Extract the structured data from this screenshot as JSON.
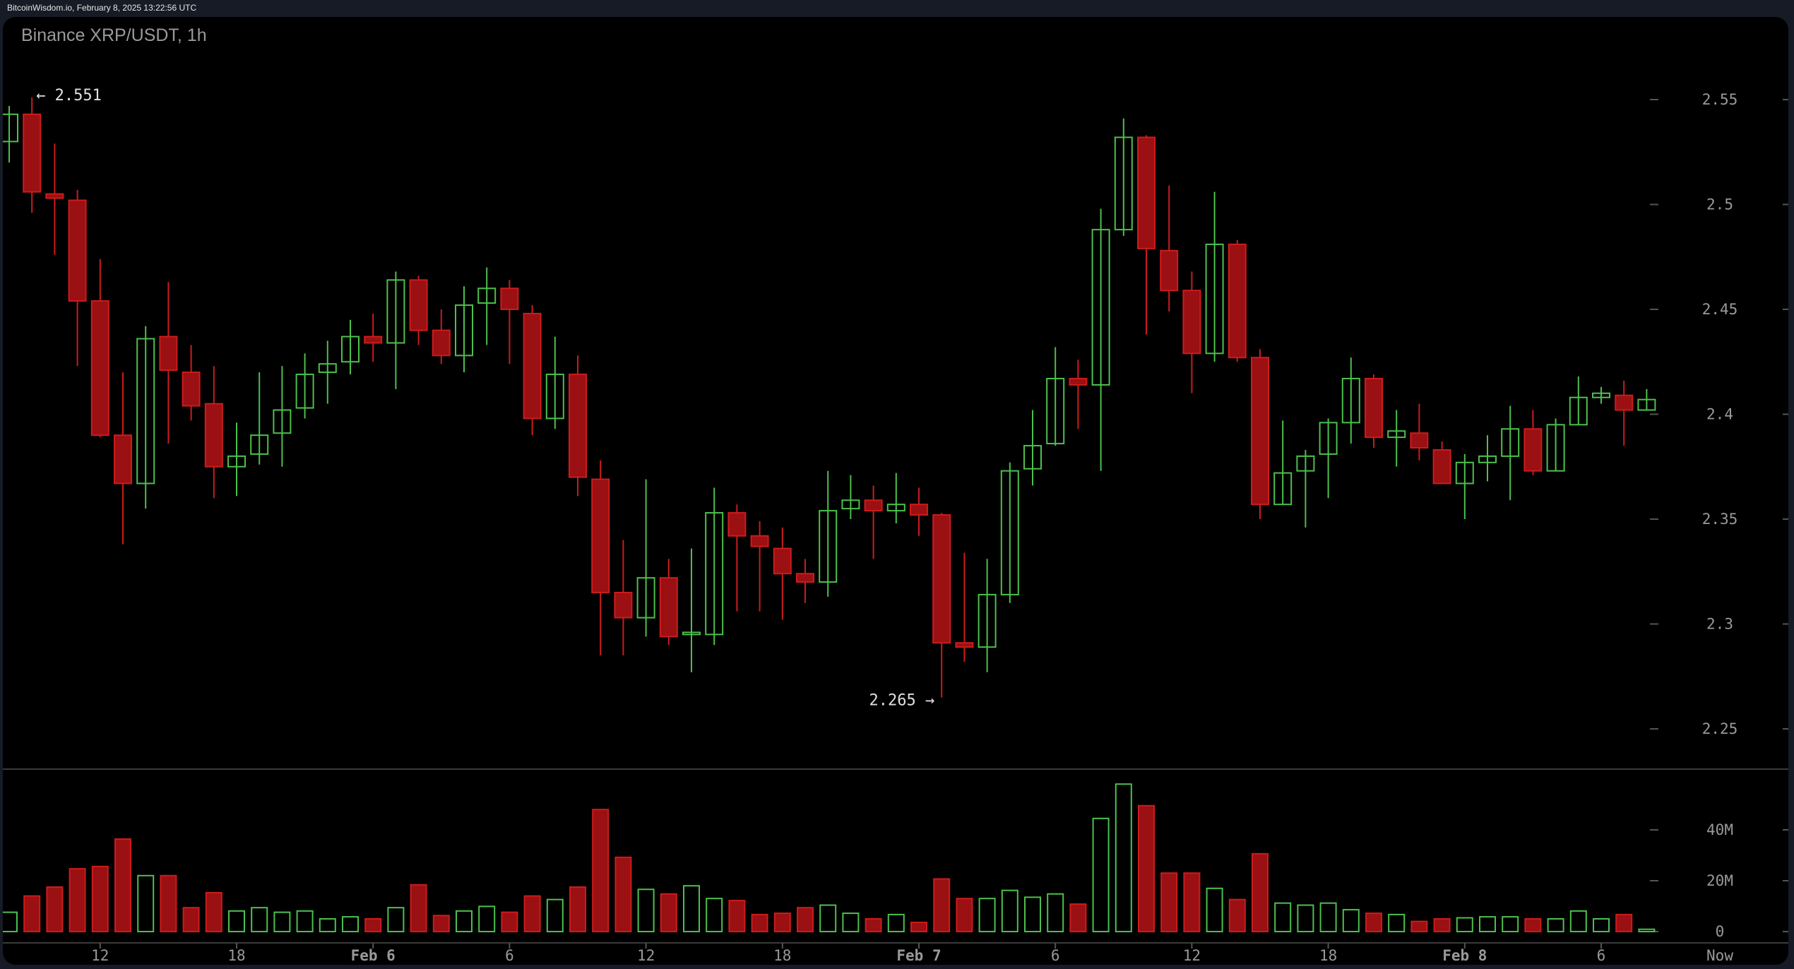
{
  "header": {
    "source_text": "BitcoinWisdom.io, February 8, 2025 13:22:56 UTC"
  },
  "chart": {
    "title": "Binance XRP/USDT, 1h"
  },
  "colors": {
    "up": "#4cc04c",
    "down": "#cc1c1c",
    "down_fill": "#9b1012",
    "axis_text": "#9a9a9a",
    "annotation": "#e0e0e0",
    "background": "#000000",
    "frame": "#161b26"
  },
  "chart_data": {
    "type": "candlestick",
    "title": "Binance XRP/USDT, 1h",
    "xlabel": "",
    "ylabel": "",
    "ylim": [
      2.22,
      2.58
    ],
    "price_ticks": [
      2.25,
      2.3,
      2.35,
      2.4,
      2.45,
      2.5,
      2.55
    ],
    "price_tick_labels": [
      "2.25",
      "2.3",
      "2.35",
      "2.4",
      "2.45",
      "2.5",
      "2.55"
    ],
    "volume_ticks": [
      0,
      20,
      40
    ],
    "volume_tick_labels": [
      "0",
      "20M",
      "40M"
    ],
    "x_tick_labels": [
      {
        "label": "12",
        "index": 4,
        "bold": false
      },
      {
        "label": "18",
        "index": 10,
        "bold": false
      },
      {
        "label": "Feb 6",
        "index": 16,
        "bold": true
      },
      {
        "label": "6",
        "index": 22,
        "bold": false
      },
      {
        "label": "12",
        "index": 28,
        "bold": false
      },
      {
        "label": "18",
        "index": 34,
        "bold": false
      },
      {
        "label": "Feb 7",
        "index": 40,
        "bold": true
      },
      {
        "label": "6",
        "index": 46,
        "bold": false
      },
      {
        "label": "12",
        "index": 52,
        "bold": false
      },
      {
        "label": "18",
        "index": 58,
        "bold": false
      },
      {
        "label": "Feb 8",
        "index": 64,
        "bold": true
      },
      {
        "label": "6",
        "index": 70,
        "bold": false
      },
      {
        "label": "Now",
        "index": 76,
        "bold": false
      }
    ],
    "annotations": [
      {
        "text": "← 2.551",
        "index": 1,
        "price": 2.551,
        "side": "right"
      },
      {
        "text": "2.265 →",
        "index": 41,
        "price": 2.265,
        "side": "left"
      }
    ],
    "grid": false,
    "volume_unit": "M",
    "candles": [
      [
        2.53,
        2.547,
        2.52,
        2.543,
        7.6
      ],
      [
        2.543,
        2.551,
        2.496,
        2.506,
        14
      ],
      [
        2.505,
        2.529,
        2.476,
        2.503,
        17.5
      ],
      [
        2.502,
        2.507,
        2.423,
        2.454,
        24.7
      ],
      [
        2.454,
        2.474,
        2.389,
        2.39,
        25.6
      ],
      [
        2.39,
        2.42,
        2.338,
        2.367,
        36.4
      ],
      [
        2.367,
        2.442,
        2.355,
        2.436,
        22
      ],
      [
        2.437,
        2.463,
        2.386,
        2.421,
        22
      ],
      [
        2.42,
        2.433,
        2.397,
        2.404,
        9.4
      ],
      [
        2.405,
        2.423,
        2.36,
        2.375,
        15.3
      ],
      [
        2.375,
        2.396,
        2.361,
        2.38,
        8.1
      ],
      [
        2.381,
        2.42,
        2.376,
        2.39,
        9.4
      ],
      [
        2.391,
        2.423,
        2.375,
        2.402,
        7.6
      ],
      [
        2.403,
        2.429,
        2.398,
        2.419,
        8.1
      ],
      [
        2.42,
        2.435,
        2.405,
        2.424,
        5.0
      ],
      [
        2.425,
        2.445,
        2.419,
        2.437,
        5.8
      ],
      [
        2.437,
        2.448,
        2.425,
        2.434,
        5.0
      ],
      [
        2.434,
        2.468,
        2.412,
        2.464,
        9.4
      ],
      [
        2.464,
        2.466,
        2.433,
        2.44,
        18.4
      ],
      [
        2.44,
        2.45,
        2.424,
        2.428,
        6.3
      ],
      [
        2.428,
        2.461,
        2.42,
        2.452,
        8.1
      ],
      [
        2.453,
        2.47,
        2.433,
        2.46,
        9.9
      ],
      [
        2.46,
        2.464,
        2.424,
        2.45,
        7.6
      ],
      [
        2.448,
        2.452,
        2.39,
        2.398,
        14
      ],
      [
        2.398,
        2.437,
        2.393,
        2.419,
        12.6
      ],
      [
        2.419,
        2.428,
        2.361,
        2.37,
        17.5
      ],
      [
        2.369,
        2.378,
        2.285,
        2.315,
        48
      ],
      [
        2.315,
        2.34,
        2.285,
        2.303,
        29.2
      ],
      [
        2.303,
        2.369,
        2.294,
        2.322,
        16.6
      ],
      [
        2.322,
        2.331,
        2.29,
        2.294,
        14.8
      ],
      [
        2.295,
        2.336,
        2.277,
        2.296,
        18
      ],
      [
        2.295,
        2.365,
        2.29,
        2.353,
        13
      ],
      [
        2.353,
        2.357,
        2.306,
        2.342,
        12.2
      ],
      [
        2.342,
        2.349,
        2.306,
        2.337,
        6.7
      ],
      [
        2.336,
        2.346,
        2.302,
        2.324,
        7.2
      ],
      [
        2.324,
        2.331,
        2.31,
        2.32,
        9.4
      ],
      [
        2.32,
        2.373,
        2.313,
        2.354,
        10.4
      ],
      [
        2.355,
        2.371,
        2.35,
        2.359,
        7.2
      ],
      [
        2.359,
        2.366,
        2.331,
        2.354,
        5.0
      ],
      [
        2.354,
        2.372,
        2.348,
        2.357,
        6.7
      ],
      [
        2.357,
        2.365,
        2.342,
        2.352,
        3.6
      ],
      [
        2.352,
        2.353,
        2.265,
        2.291,
        20.7
      ],
      [
        2.291,
        2.334,
        2.282,
        2.289,
        13
      ],
      [
        2.289,
        2.331,
        2.277,
        2.314,
        13
      ],
      [
        2.314,
        2.377,
        2.31,
        2.373,
        16.2
      ],
      [
        2.374,
        2.402,
        2.366,
        2.385,
        13.5
      ],
      [
        2.386,
        2.432,
        2.385,
        2.417,
        14.8
      ],
      [
        2.417,
        2.426,
        2.393,
        2.414,
        10.8
      ],
      [
        2.414,
        2.498,
        2.373,
        2.488,
        44.5
      ],
      [
        2.488,
        2.541,
        2.485,
        2.532,
        58
      ],
      [
        2.532,
        2.533,
        2.438,
        2.479,
        49.5
      ],
      [
        2.478,
        2.509,
        2.449,
        2.459,
        23
      ],
      [
        2.459,
        2.468,
        2.41,
        2.429,
        23
      ],
      [
        2.429,
        2.506,
        2.425,
        2.481,
        17
      ],
      [
        2.481,
        2.483,
        2.425,
        2.427,
        12.6
      ],
      [
        2.427,
        2.431,
        2.35,
        2.357,
        30.6
      ],
      [
        2.357,
        2.397,
        2.357,
        2.372,
        11.2
      ],
      [
        2.373,
        2.383,
        2.346,
        2.38,
        10.4
      ],
      [
        2.381,
        2.398,
        2.36,
        2.396,
        11.2
      ],
      [
        2.396,
        2.427,
        2.386,
        2.417,
        8.6
      ],
      [
        2.417,
        2.419,
        2.384,
        2.389,
        7.2
      ],
      [
        2.389,
        2.402,
        2.375,
        2.392,
        6.7
      ],
      [
        2.391,
        2.405,
        2.378,
        2.384,
        4.0
      ],
      [
        2.383,
        2.387,
        2.367,
        2.367,
        5.0
      ],
      [
        2.367,
        2.381,
        2.35,
        2.377,
        5.4
      ],
      [
        2.377,
        2.39,
        2.368,
        2.38,
        5.8
      ],
      [
        2.38,
        2.404,
        2.359,
        2.393,
        5.8
      ],
      [
        2.393,
        2.402,
        2.371,
        2.373,
        5.0
      ],
      [
        2.373,
        2.398,
        2.373,
        2.395,
        5.0
      ],
      [
        2.395,
        2.418,
        2.395,
        2.408,
        8.1
      ],
      [
        2.408,
        2.413,
        2.405,
        2.41,
        5.0
      ],
      [
        2.409,
        2.416,
        2.385,
        2.402,
        6.7
      ],
      [
        2.402,
        2.412,
        2.402,
        2.407,
        0.9
      ]
    ],
    "candle_format": [
      "open",
      "high",
      "low",
      "close",
      "volume_M"
    ]
  }
}
